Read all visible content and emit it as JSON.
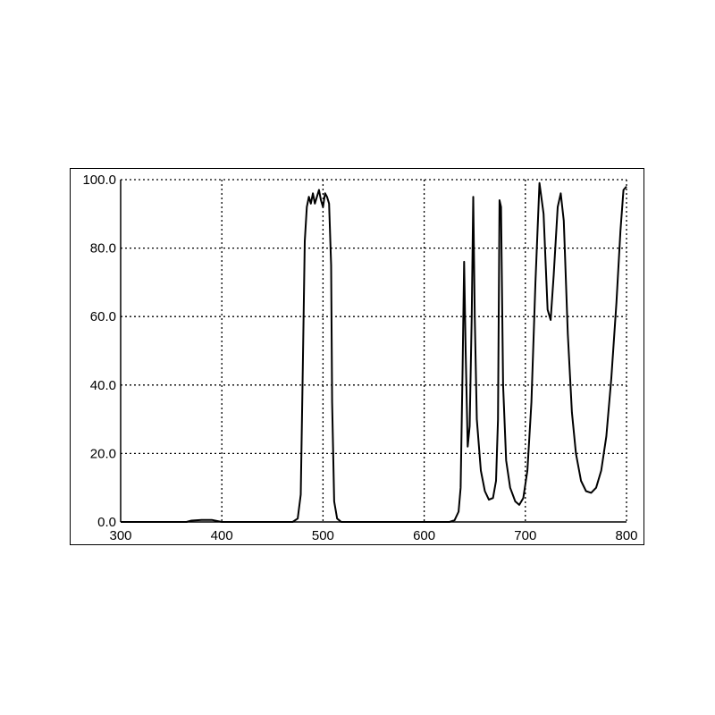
{
  "chart_data": {
    "type": "line",
    "title": "",
    "xlabel": "",
    "ylabel": "",
    "xlim": [
      300,
      800
    ],
    "ylim": [
      0,
      100
    ],
    "grid": true,
    "x_ticks": [
      "300",
      "400",
      "500",
      "600",
      "700",
      "800"
    ],
    "y_ticks": [
      "0.0",
      "20.0",
      "40.0",
      "60.0",
      "80.0",
      "100.0"
    ],
    "series": [
      {
        "color": "#000000",
        "points": [
          [
            300,
            0
          ],
          [
            365,
            0
          ],
          [
            370,
            0.4
          ],
          [
            380,
            0.6
          ],
          [
            390,
            0.6
          ],
          [
            395,
            0.3
          ],
          [
            400,
            0
          ],
          [
            470,
            0
          ],
          [
            475,
            1
          ],
          [
            478,
            8
          ],
          [
            480,
            45
          ],
          [
            482,
            82
          ],
          [
            484,
            92
          ],
          [
            486,
            95
          ],
          [
            488,
            93
          ],
          [
            490,
            96
          ],
          [
            492,
            93
          ],
          [
            494,
            95
          ],
          [
            496,
            97
          ],
          [
            498,
            94
          ],
          [
            500,
            92
          ],
          [
            502,
            96
          ],
          [
            504,
            95
          ],
          [
            506,
            93
          ],
          [
            508,
            75
          ],
          [
            509,
            35
          ],
          [
            511,
            6
          ],
          [
            514,
            1
          ],
          [
            518,
            0
          ],
          [
            625,
            0
          ],
          [
            630,
            0.5
          ],
          [
            634,
            3
          ],
          [
            636,
            10
          ],
          [
            638,
            45
          ],
          [
            639.5,
            76
          ],
          [
            641,
            50
          ],
          [
            643,
            22
          ],
          [
            645,
            28
          ],
          [
            647,
            60
          ],
          [
            648.5,
            95
          ],
          [
            650,
            60
          ],
          [
            652,
            30
          ],
          [
            656,
            15
          ],
          [
            660,
            9
          ],
          [
            664,
            6.5
          ],
          [
            668,
            7
          ],
          [
            671,
            12
          ],
          [
            673,
            30
          ],
          [
            674.5,
            94
          ],
          [
            676,
            92
          ],
          [
            678,
            40
          ],
          [
            681,
            18
          ],
          [
            685,
            10
          ],
          [
            690,
            6
          ],
          [
            694,
            5
          ],
          [
            698,
            7
          ],
          [
            702,
            15
          ],
          [
            706,
            35
          ],
          [
            710,
            70
          ],
          [
            714,
            99
          ],
          [
            718,
            90
          ],
          [
            722,
            62
          ],
          [
            725,
            59
          ],
          [
            728,
            72
          ],
          [
            732,
            92
          ],
          [
            735,
            96
          ],
          [
            738,
            88
          ],
          [
            742,
            55
          ],
          [
            746,
            32
          ],
          [
            750,
            20
          ],
          [
            755,
            12
          ],
          [
            760,
            9
          ],
          [
            765,
            8.5
          ],
          [
            770,
            10
          ],
          [
            775,
            15
          ],
          [
            780,
            25
          ],
          [
            785,
            42
          ],
          [
            790,
            64
          ],
          [
            794,
            85
          ],
          [
            797,
            97
          ],
          [
            800,
            98
          ]
        ]
      }
    ]
  }
}
